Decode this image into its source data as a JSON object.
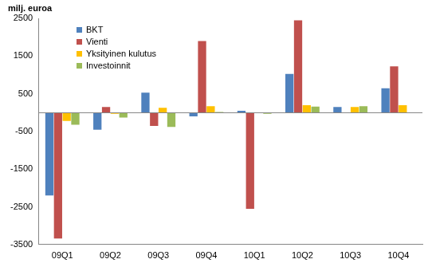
{
  "chart_data": {
    "type": "bar",
    "ylabel": "milj. euroa",
    "categories": [
      "09Q1",
      "09Q2",
      "09Q3",
      "09Q4",
      "10Q1",
      "10Q2",
      "10Q3",
      "10Q4"
    ],
    "series": [
      {
        "name": "BKT",
        "color": "#4f81bd",
        "values": [
          -2200,
          -450,
          530,
          -100,
          50,
          1030,
          150,
          650
        ]
      },
      {
        "name": "Vienti",
        "color": "#c0504d",
        "values": [
          -3340,
          150,
          -350,
          1900,
          -2550,
          2450,
          0,
          1230
        ]
      },
      {
        "name": "Yksityinen kulutus",
        "color": "#ffc000",
        "values": [
          -220,
          -30,
          130,
          170,
          0,
          200,
          150,
          200
        ]
      },
      {
        "name": "Investoinnit",
        "color": "#9bbb59",
        "values": [
          -320,
          -130,
          -380,
          20,
          -30,
          160,
          170,
          0
        ]
      }
    ],
    "ylim": [
      -3500,
      2500
    ],
    "yticks": [
      -3500,
      -2500,
      -1500,
      -500,
      500,
      1500,
      2500
    ],
    "grid": false,
    "legend": "upper left"
  }
}
